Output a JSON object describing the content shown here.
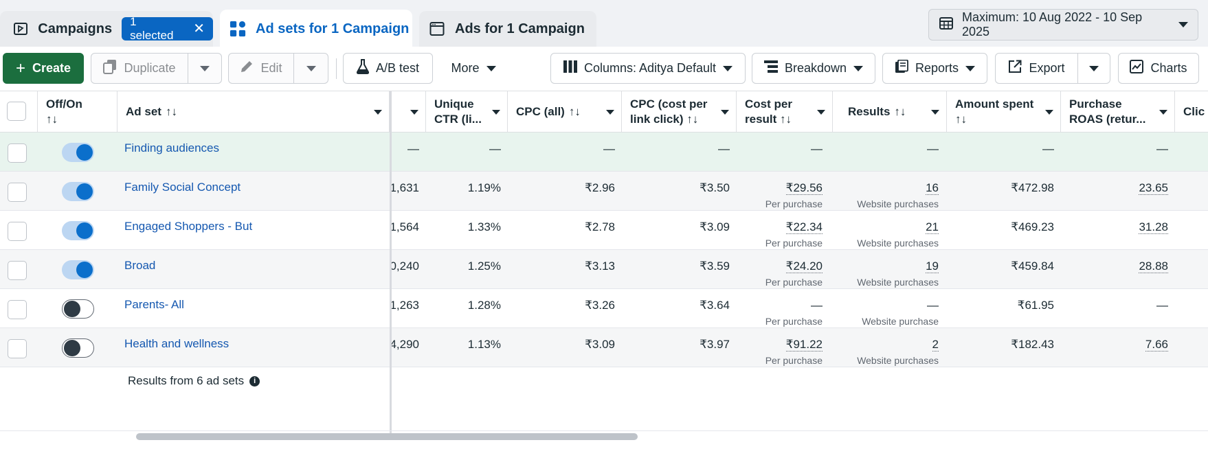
{
  "tabs": {
    "campaigns": {
      "label": "Campaigns",
      "selected_label": "1 selected",
      "clear_icon": "✕"
    },
    "adsets": {
      "label": "Ad sets for 1 Campaign"
    },
    "ads": {
      "label": "Ads for 1 Campaign"
    }
  },
  "date_range": {
    "label": "Maximum: 10 Aug 2022 - 10 Sep 2025"
  },
  "toolbar": {
    "create": "Create",
    "duplicate": "Duplicate",
    "edit": "Edit",
    "ab_test": "A/B test",
    "more": "More",
    "columns": "Columns: Aditya Default",
    "breakdown": "Breakdown",
    "reports": "Reports",
    "export": "Export",
    "charts": "Charts"
  },
  "columns": {
    "off_on": "Off/On",
    "sort_glyph": "↑↓",
    "ad_set": "Ad set",
    "unique_ctr_1": "Unique",
    "unique_ctr_2": "CTR (li...",
    "cpc_all": "CPC (all)",
    "cpc_link_1": "CPC (cost per",
    "cpc_link_2": "link click)",
    "cost_result_1": "Cost per",
    "cost_result_2": "result",
    "results": "Results",
    "amount_spent": "Amount spent",
    "roas_1": "Purchase",
    "roas_2": "ROAS (retur...",
    "clicks_partial": "Clic"
  },
  "rows": [
    {
      "name": "Finding audiences",
      "toggle": "on",
      "col_a": "—",
      "unique_ctr": "—",
      "cpc_all": "—",
      "cpc_link": "—",
      "cost_per_result": "—",
      "cost_sub": "",
      "results": "—",
      "results_sub": "",
      "amount_spent": "—",
      "roas": "—"
    },
    {
      "name": "Family Social Concept",
      "toggle": "on",
      "col_a": "1,631",
      "unique_ctr": "1.19%",
      "cpc_all": "₹2.96",
      "cpc_link": "₹3.50",
      "cost_per_result": "₹29.56",
      "cost_sub": "Per purchase",
      "results": "16",
      "results_sub": "Website purchases",
      "amount_spent": "₹472.98",
      "roas": "23.65"
    },
    {
      "name": "Engaged Shoppers - But",
      "toggle": "on",
      "col_a": "1,564",
      "unique_ctr": "1.33%",
      "cpc_all": "₹2.78",
      "cpc_link": "₹3.09",
      "cost_per_result": "₹22.34",
      "cost_sub": "Per purchase",
      "results": "21",
      "results_sub": "Website purchases",
      "amount_spent": "₹469.23",
      "roas": "31.28"
    },
    {
      "name": "Broad",
      "toggle": "on",
      "col_a": "0,240",
      "unique_ctr": "1.25%",
      "cpc_all": "₹3.13",
      "cpc_link": "₹3.59",
      "cost_per_result": "₹24.20",
      "cost_sub": "Per purchase",
      "results": "19",
      "results_sub": "Website purchases",
      "amount_spent": "₹459.84",
      "roas": "28.88"
    },
    {
      "name": "Parents- All",
      "toggle": "off",
      "col_a": "1,263",
      "unique_ctr": "1.28%",
      "cpc_all": "₹3.26",
      "cpc_link": "₹3.64",
      "cost_per_result": "—",
      "cost_sub": "Per purchase",
      "results": "—",
      "results_sub": "Website purchase",
      "amount_spent": "₹61.95",
      "roas": "—"
    },
    {
      "name": "Health and wellness",
      "toggle": "off",
      "col_a": "4,290",
      "unique_ctr": "1.13%",
      "cpc_all": "₹3.09",
      "cpc_link": "₹3.97",
      "cost_per_result": "₹91.22",
      "cost_sub": "Per purchase",
      "results": "2",
      "results_sub": "Website purchases",
      "amount_spent": "₹182.43",
      "roas": "7.66"
    }
  ],
  "footer": {
    "summary": "Results from 6 ad sets",
    "info_icon": "i"
  },
  "colors": {
    "primary_blue": "#0a66c2",
    "create_green": "#1b6e3e",
    "link_blue": "#1558b0",
    "toggle_on": "#0b6fcb"
  },
  "icons": [
    "campaign-folder-icon",
    "adsets-grid-icon",
    "ads-window-icon",
    "calendar-icon",
    "plus-icon",
    "duplicate-icon",
    "pencil-icon",
    "flask-icon",
    "columns-icon",
    "breakdown-icon",
    "reports-icon",
    "export-icon",
    "chart-icon",
    "info-icon"
  ]
}
